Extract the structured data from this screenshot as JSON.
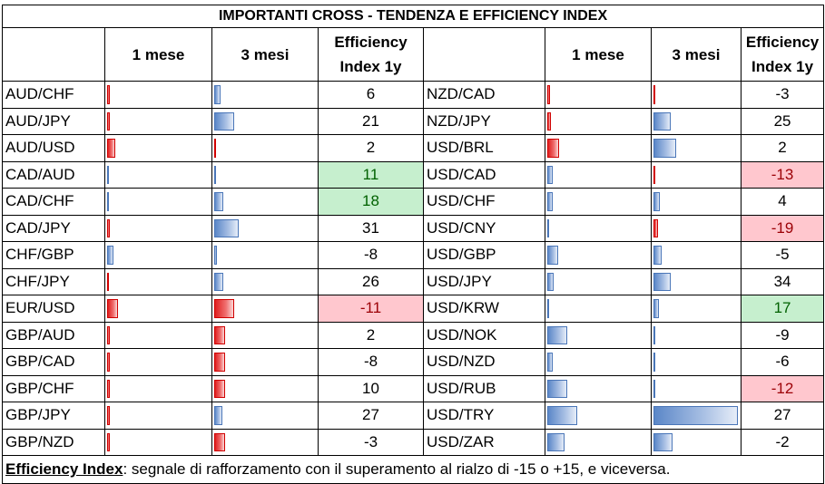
{
  "title": "IMPORTANTI CROSS - TENDENZA E EFFICIENCY INDEX",
  "headers": {
    "col_1m": "1 mese",
    "col_3m": "3 mesi",
    "col_eff_line1": "Efficiency",
    "col_eff_line2": "Index 1y"
  },
  "colors": {
    "positive_bar": "#5b87c8",
    "negative_bar": "#e02020",
    "positive_fill": "#c6efce",
    "positive_text": "#006100",
    "negative_fill": "#ffc7ce",
    "negative_text": "#9c0006"
  },
  "left": [
    {
      "pair": "AUD/CHF",
      "m1": -0.2,
      "m3": 0.5,
      "eff": "6",
      "hl": ""
    },
    {
      "pair": "AUD/JPY",
      "m1": -0.2,
      "m3": 1.5,
      "eff": "21",
      "hl": ""
    },
    {
      "pair": "AUD/USD",
      "m1": -0.6,
      "m3": -0.1,
      "eff": "2",
      "hl": ""
    },
    {
      "pair": "CAD/AUD",
      "m1": 0.1,
      "m3": 0.1,
      "eff": "11",
      "hl": "pos"
    },
    {
      "pair": "CAD/CHF",
      "m1": 0.0,
      "m3": 0.7,
      "eff": "18",
      "hl": "pos"
    },
    {
      "pair": "CAD/JPY",
      "m1": -0.2,
      "m3": 1.8,
      "eff": "31",
      "hl": ""
    },
    {
      "pair": "CHF/GBP",
      "m1": 0.5,
      "m3": 0.2,
      "eff": "-8",
      "hl": ""
    },
    {
      "pair": "CHF/JPY",
      "m1": -0.1,
      "m3": 0.7,
      "eff": "26",
      "hl": ""
    },
    {
      "pair": "EUR/USD",
      "m1": -0.8,
      "m3": -1.5,
      "eff": "-11",
      "hl": "neg"
    },
    {
      "pair": "GBP/AUD",
      "m1": -0.2,
      "m3": -0.8,
      "eff": "2",
      "hl": ""
    },
    {
      "pair": "GBP/CAD",
      "m1": -0.2,
      "m3": -0.8,
      "eff": "-8",
      "hl": ""
    },
    {
      "pair": "GBP/CHF",
      "m1": -0.2,
      "m3": -0.8,
      "eff": "10",
      "hl": ""
    },
    {
      "pair": "GBP/JPY",
      "m1": -0.2,
      "m3": 0.6,
      "eff": "27",
      "hl": ""
    },
    {
      "pair": "GBP/NZD",
      "m1": -0.2,
      "m3": -0.8,
      "eff": "-3",
      "hl": ""
    }
  ],
  "right": [
    {
      "pair": "NZD/CAD",
      "m1": -0.2,
      "m3": -0.2,
      "eff": "-3",
      "hl": ""
    },
    {
      "pair": "NZD/JPY",
      "m1": -0.3,
      "m3": 1.5,
      "eff": "25",
      "hl": ""
    },
    {
      "pair": "USD/BRL",
      "m1": -0.9,
      "m3": 2.0,
      "eff": "2",
      "hl": ""
    },
    {
      "pair": "USD/CAD",
      "m1": 0.4,
      "m3": -0.2,
      "eff": "-13",
      "hl": "neg"
    },
    {
      "pair": "USD/CHF",
      "m1": 0.4,
      "m3": 0.6,
      "eff": "4",
      "hl": ""
    },
    {
      "pair": "USD/CNY",
      "m1": 0.0,
      "m3": -0.4,
      "eff": "-19",
      "hl": "neg"
    },
    {
      "pair": "USD/GBP",
      "m1": 0.8,
      "m3": 0.7,
      "eff": "-5",
      "hl": ""
    },
    {
      "pair": "USD/JPY",
      "m1": 0.5,
      "m3": 1.5,
      "eff": "34",
      "hl": ""
    },
    {
      "pair": "USD/KRW",
      "m1": 0.1,
      "m3": 0.5,
      "eff": "17",
      "hl": "pos"
    },
    {
      "pair": "USD/NOK",
      "m1": 1.5,
      "m3": 0.1,
      "eff": "-9",
      "hl": ""
    },
    {
      "pair": "USD/NZD",
      "m1": 0.4,
      "m3": 0.0,
      "eff": "-6",
      "hl": ""
    },
    {
      "pair": "USD/RUB",
      "m1": 1.5,
      "m3": 0.0,
      "eff": "-12",
      "hl": "neg"
    },
    {
      "pair": "USD/TRY",
      "m1": 2.2,
      "m3": 7.5,
      "eff": "27",
      "hl": ""
    },
    {
      "pair": "USD/ZAR",
      "m1": 1.3,
      "m3": 1.7,
      "eff": "-2",
      "hl": ""
    }
  ],
  "bar_scale_max": 7.5,
  "footer": {
    "label": "Efficiency Index",
    "text": ": segnale di rafforzamento con il superamento al rialzo di -15 o +15, e viceversa."
  }
}
